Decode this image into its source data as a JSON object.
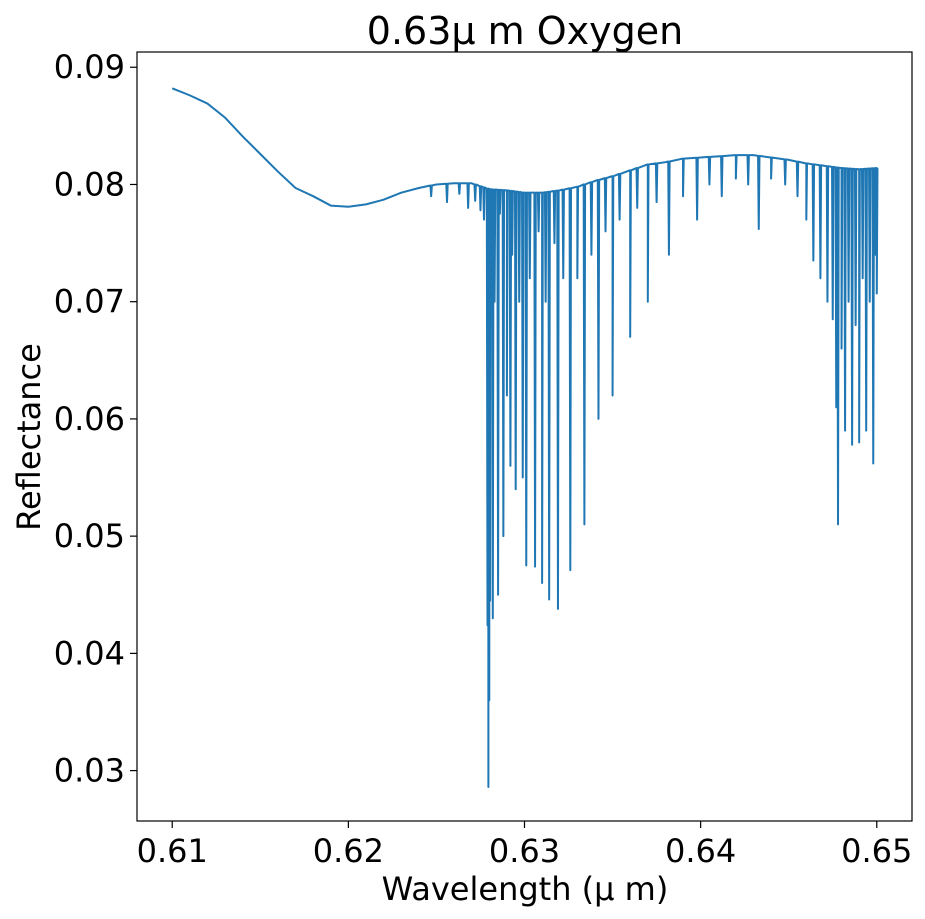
{
  "chart_data": {
    "type": "line",
    "title": "0.63μ m Oxygen",
    "xlabel": "Wavelength (μ m)",
    "ylabel": "Reflectance",
    "xlim": [
      0.608,
      0.652
    ],
    "ylim": [
      0.0257,
      0.0913
    ],
    "xticks": [
      0.61,
      0.62,
      0.63,
      0.64,
      0.65
    ],
    "xtick_labels": [
      "0.61",
      "0.62",
      "0.63",
      "0.64",
      "0.65"
    ],
    "yticks": [
      0.03,
      0.04,
      0.05,
      0.06,
      0.07,
      0.08,
      0.09
    ],
    "ytick_labels": [
      "0.03",
      "0.04",
      "0.05",
      "0.06",
      "0.07",
      "0.08",
      "0.09"
    ],
    "grid": false,
    "colors": {
      "line": "#1f77b4",
      "axes": "#000000"
    },
    "series": [
      {
        "continuum": [
          [
            0.61,
            0.0882
          ],
          [
            0.611,
            0.0876
          ],
          [
            0.612,
            0.0869
          ],
          [
            0.613,
            0.0857
          ],
          [
            0.614,
            0.0841
          ],
          [
            0.615,
            0.0826
          ],
          [
            0.616,
            0.0811
          ],
          [
            0.617,
            0.0797
          ],
          [
            0.618,
            0.079
          ],
          [
            0.619,
            0.0782
          ],
          [
            0.62,
            0.0781
          ],
          [
            0.621,
            0.0783
          ],
          [
            0.622,
            0.0787
          ],
          [
            0.623,
            0.0793
          ],
          [
            0.624,
            0.0797
          ],
          [
            0.625,
            0.08
          ],
          [
            0.626,
            0.0801
          ],
          [
            0.627,
            0.0801
          ],
          [
            0.628,
            0.0796
          ],
          [
            0.629,
            0.0795
          ],
          [
            0.63,
            0.0793
          ],
          [
            0.631,
            0.0793
          ],
          [
            0.632,
            0.0795
          ],
          [
            0.633,
            0.0798
          ],
          [
            0.634,
            0.0803
          ],
          [
            0.635,
            0.0807
          ],
          [
            0.636,
            0.0812
          ],
          [
            0.637,
            0.0817
          ],
          [
            0.638,
            0.0819
          ],
          [
            0.639,
            0.0822
          ],
          [
            0.64,
            0.0823
          ],
          [
            0.641,
            0.0824
          ],
          [
            0.642,
            0.0825
          ],
          [
            0.643,
            0.0825
          ],
          [
            0.644,
            0.0823
          ],
          [
            0.645,
            0.0821
          ],
          [
            0.646,
            0.0818
          ],
          [
            0.647,
            0.0816
          ],
          [
            0.648,
            0.0814
          ],
          [
            0.649,
            0.0813
          ],
          [
            0.65,
            0.0814
          ]
        ],
        "absorption_lines": [
          [
            0.6247,
            0.079
          ],
          [
            0.6256,
            0.0785
          ],
          [
            0.6263,
            0.0792
          ],
          [
            0.6268,
            0.078
          ],
          [
            0.6272,
            0.0786
          ],
          [
            0.6275,
            0.0778
          ],
          [
            0.6277,
            0.077
          ],
          [
            0.6279,
            0.0424
          ],
          [
            0.62795,
            0.0286
          ],
          [
            0.628,
            0.036
          ],
          [
            0.62805,
            0.0445
          ],
          [
            0.6281,
            0.076
          ],
          [
            0.6282,
            0.043
          ],
          [
            0.6283,
            0.07
          ],
          [
            0.6285,
            0.045
          ],
          [
            0.6286,
            0.0775
          ],
          [
            0.6288,
            0.05
          ],
          [
            0.629,
            0.062
          ],
          [
            0.6292,
            0.056
          ],
          [
            0.6293,
            0.074
          ],
          [
            0.6295,
            0.054
          ],
          [
            0.6297,
            0.07
          ],
          [
            0.6299,
            0.055
          ],
          [
            0.6301,
            0.0475
          ],
          [
            0.6303,
            0.072
          ],
          [
            0.6306,
            0.0474
          ],
          [
            0.6308,
            0.076
          ],
          [
            0.631,
            0.046
          ],
          [
            0.6312,
            0.07
          ],
          [
            0.6314,
            0.0446
          ],
          [
            0.6317,
            0.075
          ],
          [
            0.6319,
            0.0438
          ],
          [
            0.6322,
            0.072
          ],
          [
            0.6326,
            0.0471
          ],
          [
            0.633,
            0.072
          ],
          [
            0.6334,
            0.051
          ],
          [
            0.6338,
            0.074
          ],
          [
            0.6342,
            0.06
          ],
          [
            0.6346,
            0.076
          ],
          [
            0.635,
            0.062
          ],
          [
            0.6354,
            0.077
          ],
          [
            0.636,
            0.067
          ],
          [
            0.6364,
            0.078
          ],
          [
            0.637,
            0.07
          ],
          [
            0.6375,
            0.0785
          ],
          [
            0.6382,
            0.074
          ],
          [
            0.639,
            0.079
          ],
          [
            0.6398,
            0.077
          ],
          [
            0.6405,
            0.08
          ],
          [
            0.6412,
            0.079
          ],
          [
            0.642,
            0.0805
          ],
          [
            0.6427,
            0.08
          ],
          [
            0.6433,
            0.0762
          ],
          [
            0.644,
            0.0805
          ],
          [
            0.6448,
            0.08
          ],
          [
            0.6455,
            0.079
          ],
          [
            0.646,
            0.077
          ],
          [
            0.6464,
            0.0735
          ],
          [
            0.6468,
            0.072
          ],
          [
            0.6472,
            0.07
          ],
          [
            0.6475,
            0.0685
          ],
          [
            0.6477,
            0.061
          ],
          [
            0.6478,
            0.051
          ],
          [
            0.648,
            0.066
          ],
          [
            0.6482,
            0.059
          ],
          [
            0.6484,
            0.07
          ],
          [
            0.6486,
            0.0578
          ],
          [
            0.6488,
            0.068
          ],
          [
            0.649,
            0.058
          ],
          [
            0.6492,
            0.072
          ],
          [
            0.6494,
            0.059
          ],
          [
            0.6496,
            0.07
          ],
          [
            0.6498,
            0.0562
          ],
          [
            0.6499,
            0.074
          ],
          [
            0.65,
            0.0707
          ]
        ]
      }
    ]
  }
}
